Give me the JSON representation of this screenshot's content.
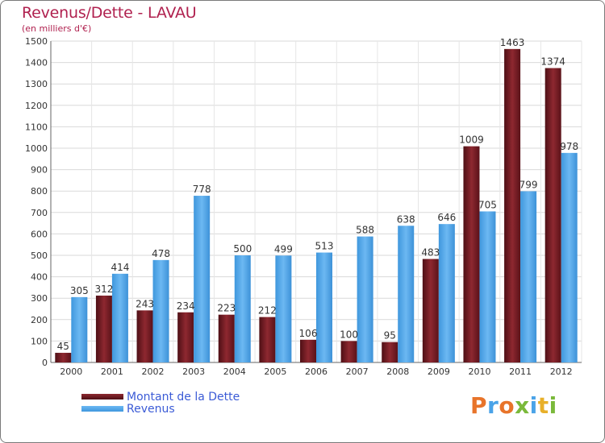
{
  "chart_data": {
    "type": "bar",
    "title": "Revenus/Dette - LAVAU",
    "subtitle": "(en milliers d'€)",
    "categories": [
      "2000",
      "2001",
      "2002",
      "2003",
      "2004",
      "2005",
      "2006",
      "2007",
      "2008",
      "2009",
      "2010",
      "2011",
      "2012"
    ],
    "series": [
      {
        "name": "Montant de la Dette",
        "values": [
          45,
          312,
          243,
          234,
          223,
          212,
          106,
          100,
          95,
          483,
          1009,
          1463,
          1374
        ],
        "color": "#7a1c24"
      },
      {
        "name": "Revenus",
        "values": [
          305,
          414,
          478,
          778,
          500,
          499,
          513,
          588,
          638,
          646,
          705,
          799,
          978
        ],
        "color": "#4aa3e8"
      }
    ],
    "ylim": [
      0,
      1500
    ],
    "yticks": [
      0,
      100,
      200,
      300,
      400,
      500,
      600,
      700,
      800,
      900,
      1000,
      1100,
      1200,
      1300,
      1400,
      1500
    ],
    "grid": true,
    "legend_position": "bottom-left"
  },
  "logo": {
    "letters": [
      {
        "ch": "P",
        "color": "#e8742a"
      },
      {
        "ch": "r",
        "color": "#4aa3e8"
      },
      {
        "ch": "o",
        "color": "#e8742a"
      },
      {
        "ch": "x",
        "color": "#7ab93a"
      },
      {
        "ch": "i",
        "color": "#4aa3e8"
      },
      {
        "ch": "t",
        "color": "#e8b02a"
      },
      {
        "ch": "i",
        "color": "#7ab93a"
      }
    ]
  }
}
